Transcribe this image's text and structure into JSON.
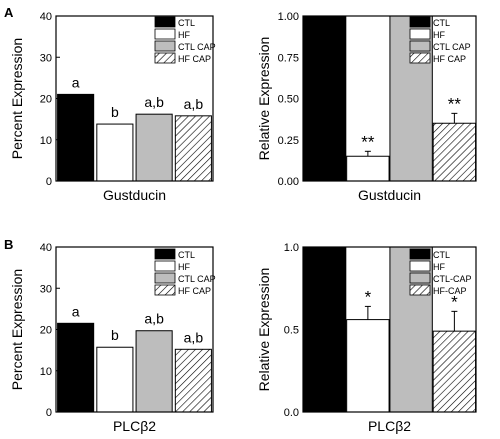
{
  "panel_labels": [
    "A",
    "B"
  ],
  "colors": {
    "ctl": "#000000",
    "hf": "#ffffff",
    "ctl_cap": "#bdbdbd",
    "hf_cap_hatch": "#000000",
    "axis": "#000000"
  },
  "chart_data": [
    {
      "panel": "A",
      "type": "bar",
      "title": "",
      "xlabel": "Gustducin",
      "ylabel": "Percent Expression",
      "ylim": [
        0,
        40
      ],
      "yticks": [
        "0",
        "10",
        "20",
        "30",
        "40"
      ],
      "categories": [
        "CTL",
        "HF",
        "CTL CAP",
        "HF CAP"
      ],
      "values": [
        21,
        13.8,
        16.2,
        15.8
      ],
      "error": [
        0,
        0,
        0,
        0
      ],
      "annotations": [
        "a",
        "b",
        "a,b",
        "a,b"
      ],
      "legend": [
        "CTL",
        "HF",
        "CTL CAP",
        "HF CAP"
      ],
      "legend_position": "top-right",
      "grid": false
    },
    {
      "panel": "A",
      "type": "bar",
      "title": "",
      "xlabel": "Gustducin",
      "ylabel": "Relative Expression",
      "ylim": [
        0,
        1.0
      ],
      "yticks": [
        "0.00",
        "0.25",
        "0.50",
        "0.75",
        "1.00"
      ],
      "categories": [
        "CTL",
        "HF",
        "CTL CAP",
        "HF CAP"
      ],
      "values": [
        1.0,
        0.15,
        1.0,
        0.35
      ],
      "error": [
        0,
        0.03,
        0,
        0.06
      ],
      "annotations": [
        "",
        "**",
        "",
        "**"
      ],
      "legend": [
        "CTL",
        "HF",
        "CTL CAP",
        "HF CAP"
      ],
      "legend_position": "top-right",
      "grid": false
    },
    {
      "panel": "B",
      "type": "bar",
      "title": "",
      "xlabel": "PLCβ2",
      "ylabel": "Percent Expression",
      "ylim": [
        0,
        40
      ],
      "yticks": [
        "0",
        "10",
        "20",
        "30",
        "40"
      ],
      "categories": [
        "CTL",
        "HF",
        "CTL CAP",
        "HF CAP"
      ],
      "values": [
        21.5,
        15.7,
        19.7,
        15.2
      ],
      "error": [
        0,
        0,
        0,
        0
      ],
      "annotations": [
        "a",
        "b",
        "a,b",
        "a,b"
      ],
      "legend": [
        "CTL",
        "HF",
        "CTL CAP",
        "HF CAP"
      ],
      "legend_position": "top-right",
      "grid": false
    },
    {
      "panel": "B",
      "type": "bar",
      "title": "",
      "xlabel": "PLCβ2",
      "ylabel": "Relative Expression",
      "ylim": [
        0,
        1.0
      ],
      "yticks": [
        "0.0",
        "0.5",
        "1.0"
      ],
      "categories": [
        "CTL",
        "HF",
        "CTL CAP",
        "HF CAP"
      ],
      "values": [
        1.0,
        0.56,
        1.0,
        0.49
      ],
      "error": [
        0,
        0.08,
        0,
        0.12
      ],
      "annotations": [
        "",
        "*",
        "",
        "*"
      ],
      "legend": [
        "CTL",
        "HF",
        "CTL-CAP",
        "HF-CAP"
      ],
      "legend_position": "top-right",
      "grid": false
    }
  ]
}
